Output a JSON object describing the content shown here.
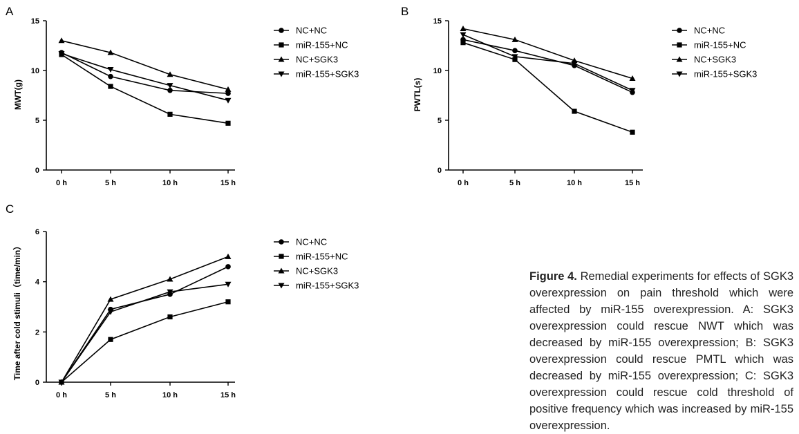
{
  "chart_data": [
    {
      "panel": "A",
      "type": "line",
      "categories": [
        "0 h",
        "5 h",
        "10 h",
        "15 h"
      ],
      "ylabel": "MWT(g)",
      "xlabel": "",
      "ylim": [
        0,
        15
      ],
      "yticks": [
        0,
        5,
        10,
        15
      ],
      "grid": false,
      "legend": "right",
      "series": [
        {
          "name": "NC+NC",
          "marker": "circle",
          "values": [
            11.8,
            9.4,
            8.0,
            7.7
          ]
        },
        {
          "name": "miR-155+NC",
          "marker": "square",
          "values": [
            11.6,
            8.4,
            5.6,
            4.7
          ]
        },
        {
          "name": "NC+SGK3",
          "marker": "triangle-up",
          "values": [
            13.0,
            11.8,
            9.6,
            8.1
          ]
        },
        {
          "name": "miR-155+SGK3",
          "marker": "triangle-down",
          "values": [
            11.7,
            10.1,
            8.5,
            7.0
          ]
        }
      ]
    },
    {
      "panel": "B",
      "type": "line",
      "categories": [
        "0 h",
        "5 h",
        "10 h",
        "15 h"
      ],
      "ylabel": "PWTL(s)",
      "xlabel": "",
      "ylim": [
        0,
        15
      ],
      "yticks": [
        0,
        5,
        10,
        15
      ],
      "grid": false,
      "legend": "right",
      "series": [
        {
          "name": "NC+NC",
          "marker": "circle",
          "values": [
            13.1,
            12.0,
            10.5,
            7.8
          ]
        },
        {
          "name": "miR-155+NC",
          "marker": "square",
          "values": [
            12.8,
            11.1,
            5.9,
            3.8
          ]
        },
        {
          "name": "NC+SGK3",
          "marker": "triangle-up",
          "values": [
            14.2,
            13.1,
            11.0,
            9.2
          ]
        },
        {
          "name": "miR-155+SGK3",
          "marker": "triangle-down",
          "values": [
            13.6,
            11.4,
            10.7,
            8.0
          ]
        }
      ]
    },
    {
      "panel": "C",
      "type": "line",
      "categories": [
        "0 h",
        "5 h",
        "10 h",
        "15 h"
      ],
      "ylabel": "Time after cold stimuli（time/min）",
      "xlabel": "",
      "ylim": [
        0,
        6
      ],
      "yticks": [
        0,
        2,
        4,
        6
      ],
      "grid": false,
      "legend": "right",
      "series": [
        {
          "name": "NC+NC",
          "marker": "circle",
          "values": [
            0,
            2.9,
            3.5,
            4.6
          ]
        },
        {
          "name": "miR-155+NC",
          "marker": "square",
          "values": [
            0,
            1.7,
            2.6,
            3.2
          ]
        },
        {
          "name": "NC+SGK3",
          "marker": "triangle-up",
          "values": [
            0,
            3.3,
            4.1,
            5.0
          ]
        },
        {
          "name": "miR-155+SGK3",
          "marker": "triangle-down",
          "values": [
            0,
            2.8,
            3.6,
            3.9
          ]
        }
      ]
    }
  ],
  "caption": {
    "label": "Figure 4.",
    "text": "Remedial experiments for effects of SGK3 overexpression on pain threshold which were affected by miR-155 overexpression. A: SGK3 overexpression could rescue NWT which was decreased by miR-155 overexpression; B: SGK3 overexpression could rescue PMTL which was decreased by miR-155 overexpression; C: SGK3 overexpression could rescue cold threshold of positive frequency which was increased by miR-155 overexpression."
  }
}
